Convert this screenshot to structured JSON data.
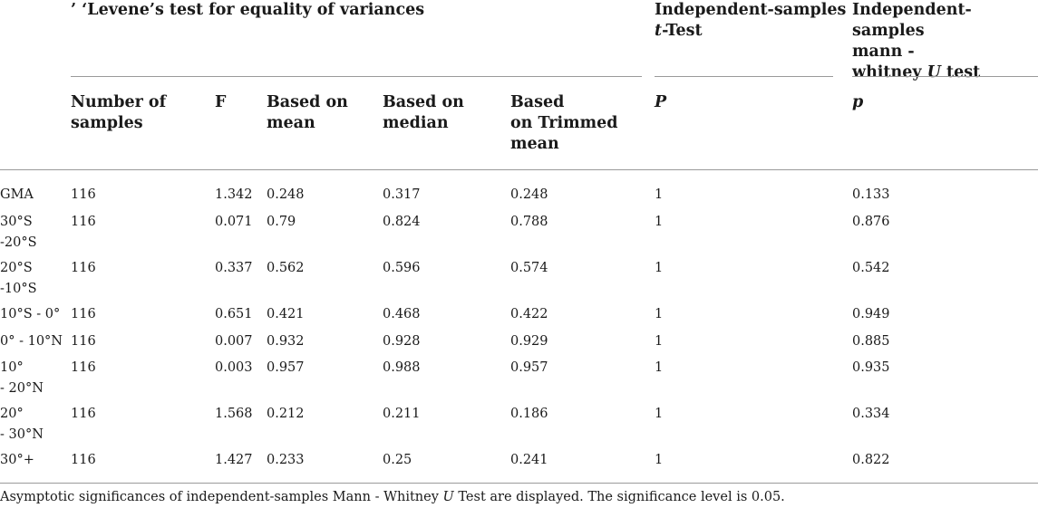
{
  "header": {
    "levene_title": "’ ‘Levene’s test for equality of variances",
    "ttest_title_line1": "Independent-samples",
    "ttest_title_t": "t",
    "ttest_title_rest": "-Test",
    "mw_title_line1": "Independent-samples",
    "mw_title_line2": "mann -",
    "mw_title_line3a": "whitney ",
    "mw_title_u": "U",
    "mw_title_line3b": " test"
  },
  "subheader": {
    "num_samples_1": "Number of",
    "num_samples_2": "samples",
    "f": "F",
    "mean_1": "Based on",
    "mean_2": "mean",
    "median_1": "Based on",
    "median_2": "median",
    "trimmed_1": "Based",
    "trimmed_2": "on Trimmed",
    "trimmed_3": "mean",
    "p_ttest": "P",
    "p_mw": "p"
  },
  "rows": [
    {
      "region": [
        "GMA"
      ],
      "n": "116",
      "f": "1.342",
      "mean": "0.248",
      "median": "0.317",
      "trimmed": "0.248",
      "t": "1",
      "mw": "0.133"
    },
    {
      "region": [
        "30°S",
        "-20°S"
      ],
      "n": "116",
      "f": "0.071",
      "mean": "0.79",
      "median": "0.824",
      "trimmed": "0.788",
      "t": "1",
      "mw": "0.876"
    },
    {
      "region": [
        "20°S",
        "-10°S"
      ],
      "n": "116",
      "f": "0.337",
      "mean": "0.562",
      "median": "0.596",
      "trimmed": "0.574",
      "t": "1",
      "mw": "0.542"
    },
    {
      "region": [
        "10°S - 0°"
      ],
      "n": "116",
      "f": "0.651",
      "mean": "0.421",
      "median": "0.468",
      "trimmed": "0.422",
      "t": "1",
      "mw": "0.949"
    },
    {
      "region": [
        "0° - 10°N"
      ],
      "n": "116",
      "f": "0.007",
      "mean": "0.932",
      "median": "0.928",
      "trimmed": "0.929",
      "t": "1",
      "mw": "0.885"
    },
    {
      "region": [
        "10°",
        "- 20°N"
      ],
      "n": "116",
      "f": "0.003",
      "mean": "0.957",
      "median": "0.988",
      "trimmed": "0.957",
      "t": "1",
      "mw": "0.935"
    },
    {
      "region": [
        "20°",
        "- 30°N"
      ],
      "n": "116",
      "f": "1.568",
      "mean": "0.212",
      "median": "0.211",
      "trimmed": "0.186",
      "t": "1",
      "mw": "0.334"
    },
    {
      "region": [
        "30°+"
      ],
      "n": "116",
      "f": "1.427",
      "mean": "0.233",
      "median": "0.25",
      "trimmed": "0.241",
      "t": "1",
      "mw": "0.822"
    }
  ],
  "footnote": {
    "before_u": "Asymptotic significances of independent-samples Mann - Whitney ",
    "u": "U",
    "after_u": " Test are displayed. The significance level is 0.05."
  }
}
